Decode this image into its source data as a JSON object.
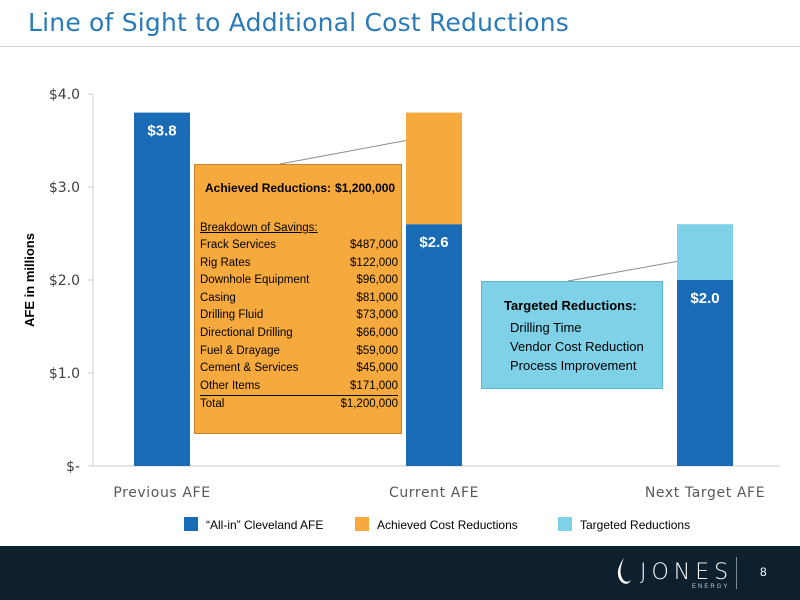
{
  "title": "Line of Sight to Additional Cost Reductions",
  "page_number": "8",
  "logo": {
    "name": "JONES",
    "sub": "ENERGY"
  },
  "colors": {
    "allin": "#1a6bb5",
    "achieved": "#f6a93d",
    "targeted": "#7fd1e8",
    "title": "#2a7ab8",
    "footer": "#0e1f2e"
  },
  "chart_data": {
    "type": "bar",
    "stacked": true,
    "categories": [
      "Previous AFE",
      "Current AFE",
      "Next Target AFE"
    ],
    "ylabel": "AFE in millions",
    "ylim": [
      0,
      4
    ],
    "yticks": [
      0,
      1,
      2,
      3,
      4
    ],
    "ytick_labels": [
      "$-",
      "$1.0",
      "$2.0",
      "$3.0",
      "$4.0"
    ],
    "series": [
      {
        "name": "“All-in” Cleveland AFE",
        "values": [
          3.8,
          2.6,
          2.0
        ],
        "labels": [
          "$3.8",
          "$2.6",
          "$2.0"
        ]
      },
      {
        "name": "Achieved Cost Reductions",
        "values": [
          0,
          1.2,
          0
        ]
      },
      {
        "name": "Targeted Reductions",
        "values": [
          0,
          0,
          0.6
        ]
      }
    ],
    "legend": "bottom"
  },
  "achieved": {
    "label": "Achieved Reductions:",
    "total": "$1,200,000",
    "breakdown_label": "Breakdown of Savings:",
    "items": [
      {
        "name": "Frack Services",
        "value": "$487,000"
      },
      {
        "name": "Rig Rates",
        "value": "$122,000"
      },
      {
        "name": "Downhole Equipment",
        "value": "$96,000"
      },
      {
        "name": "Casing",
        "value": "$81,000"
      },
      {
        "name": "Drilling Fluid",
        "value": "$73,000"
      },
      {
        "name": "Directional Drilling",
        "value": "$66,000"
      },
      {
        "name": "Fuel & Drayage",
        "value": "$59,000"
      },
      {
        "name": "Cement & Services",
        "value": "$45,000"
      },
      {
        "name": "Other Items",
        "value": "$171,000"
      },
      {
        "name": "Total",
        "value": "$1,200,000"
      }
    ]
  },
  "targeted": {
    "label": "Targeted Reductions:",
    "items": [
      "Drilling Time",
      "Vendor Cost Reduction",
      "Process Improvement"
    ]
  }
}
